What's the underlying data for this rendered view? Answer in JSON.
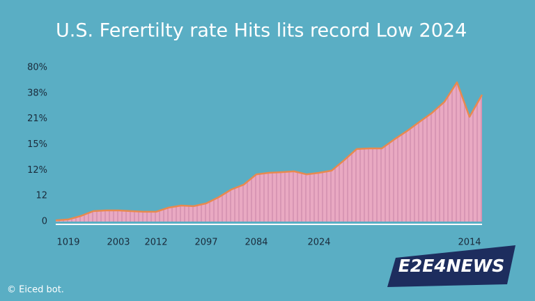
{
  "chart_data": {
    "type": "area",
    "title": "U.S. Ferertilty rate Hits lits record Low 2024",
    "categories": [
      null,
      "1019",
      null,
      null,
      null,
      "2003",
      null,
      null,
      "2012",
      null,
      null,
      null,
      "2097",
      null,
      null,
      null,
      "2084",
      null,
      null,
      null,
      null,
      "2024",
      null,
      null,
      null,
      null,
      null,
      null,
      null,
      null,
      null,
      null,
      null,
      "2014",
      null
    ],
    "values": [
      0.6,
      1,
      2.6,
      4.9,
      5.2,
      5.2,
      4.9,
      4.6,
      4.6,
      6.5,
      7.5,
      7.2,
      8.5,
      11.4,
      15,
      17.3,
      22.1,
      22.8,
      23.1,
      23.5,
      22.1,
      22.8,
      23.8,
      28.7,
      33.9,
      34.2,
      34.2,
      38.4,
      42.3,
      46.6,
      50.8,
      56,
      65.1,
      49,
      59.3
    ],
    "color": "#e9a9c2",
    "line_color": "#e8894f",
    "ylim": [
      0,
      72
    ],
    "yticks": [
      0,
      12,
      {
        "value": 24,
        "label": "12%"
      },
      {
        "value": 36,
        "label": "15%"
      },
      {
        "value": 48,
        "label": "21%"
      },
      {
        "value": 60,
        "label": "38%"
      },
      {
        "value": 72,
        "label": "80%"
      }
    ],
    "logo": "E2E4NEWS",
    "footer": "© Eiced bot."
  }
}
